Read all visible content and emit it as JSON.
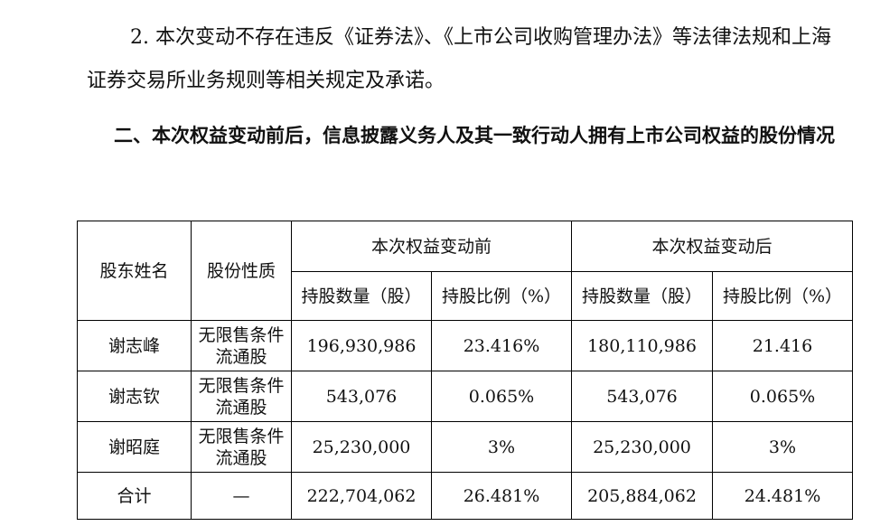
{
  "paragraph": {
    "text": "2. 本次变动不存在违反《证券法》、《上市公司收购管理办法》等法律法规和上海证券交易所业务规则等相关规定及承诺。"
  },
  "section_heading": {
    "text": "二、本次权益变动前后，信息披露义务人及其一致行动人拥有上市公司权益的股份情况"
  },
  "table": {
    "headers": {
      "shareholder_name": "股东姓名",
      "share_nature": "股份性质",
      "before_group": "本次权益变动前",
      "after_group": "本次权益变动后",
      "before_qty": "持股数量（股）",
      "before_ratio": "持股比例（%）",
      "after_qty": "持股数量（股）",
      "after_ratio": "持股比例（%）"
    },
    "rows": [
      {
        "name": "谢志峰",
        "nature": "无限售条件流通股",
        "before_qty": "196,930,986",
        "before_ratio": "23.416%",
        "after_qty": "180,110,986",
        "after_ratio": "21.416"
      },
      {
        "name": "谢志钦",
        "nature": "无限售条件流通股",
        "before_qty": "543,076",
        "before_ratio": "0.065%",
        "after_qty": "543,076",
        "after_ratio": "0.065%"
      },
      {
        "name": "谢昭庭",
        "nature": "无限售条件流通股",
        "before_qty": "25,230,000",
        "before_ratio": "3%",
        "after_qty": "25,230,000",
        "after_ratio": "3%"
      }
    ],
    "total": {
      "name": "合计",
      "nature": "—",
      "before_qty": "222,704,062",
      "before_ratio": "26.481%",
      "after_qty": "205,884,062",
      "after_ratio": "24.481%"
    }
  }
}
